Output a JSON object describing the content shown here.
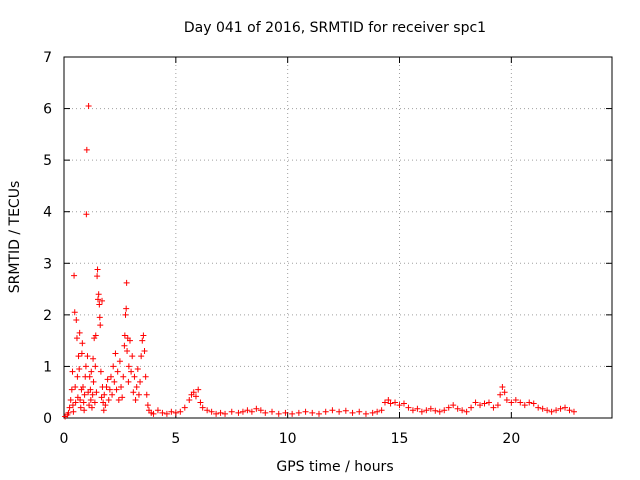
{
  "chart_data": {
    "type": "scatter",
    "title": "Day 041 of 2016, SRMTID for receiver spc1",
    "xlabel": "GPS time / hours",
    "ylabel": "SRMTID / TECUs",
    "xlim": [
      0,
      24.5
    ],
    "ylim": [
      0,
      7
    ],
    "xticks": [
      0,
      5,
      10,
      15,
      20
    ],
    "yticks": [
      0,
      1,
      2,
      3,
      4,
      5,
      6,
      7
    ],
    "grid": true,
    "marker": "+",
    "series": [
      {
        "name": "SRMTID",
        "color": "#ff0000",
        "points": [
          [
            0.05,
            0.03
          ],
          [
            0.15,
            0.06
          ],
          [
            0.2,
            0.1
          ],
          [
            0.25,
            0.2
          ],
          [
            0.3,
            0.35
          ],
          [
            0.35,
            0.55
          ],
          [
            0.38,
            0.9
          ],
          [
            0.4,
            0.25
          ],
          [
            0.42,
            0.12
          ],
          [
            0.45,
            2.76
          ],
          [
            0.48,
            2.05
          ],
          [
            0.5,
            0.6
          ],
          [
            0.52,
            0.3
          ],
          [
            0.55,
            1.9
          ],
          [
            0.58,
            1.55
          ],
          [
            0.6,
            0.8
          ],
          [
            0.62,
            0.4
          ],
          [
            0.65,
            1.2
          ],
          [
            0.68,
            0.95
          ],
          [
            0.7,
            1.65
          ],
          [
            0.72,
            0.35
          ],
          [
            0.75,
            0.2
          ],
          [
            0.78,
            0.55
          ],
          [
            0.8,
            1.25
          ],
          [
            0.82,
            1.45
          ],
          [
            0.85,
            0.6
          ],
          [
            0.88,
            0.3
          ],
          [
            0.9,
            0.15
          ],
          [
            0.92,
            0.45
          ],
          [
            0.95,
            0.8
          ],
          [
            0.98,
            1.0
          ],
          [
            1.0,
            3.95
          ],
          [
            1.02,
            5.2
          ],
          [
            1.05,
            1.2
          ],
          [
            1.08,
            0.5
          ],
          [
            1.1,
            6.05
          ],
          [
            1.12,
            0.25
          ],
          [
            1.15,
            0.8
          ],
          [
            1.18,
            0.55
          ],
          [
            1.2,
            0.35
          ],
          [
            1.22,
            0.9
          ],
          [
            1.25,
            0.2
          ],
          [
            1.28,
            0.45
          ],
          [
            1.3,
            1.15
          ],
          [
            1.32,
            0.7
          ],
          [
            1.35,
            1.55
          ],
          [
            1.38,
            0.3
          ],
          [
            1.4,
            1.0
          ],
          [
            1.42,
            1.6
          ],
          [
            1.45,
            0.5
          ],
          [
            1.48,
            2.75
          ],
          [
            1.5,
            2.88
          ],
          [
            1.52,
            2.3
          ],
          [
            1.55,
            2.4
          ],
          [
            1.58,
            2.2
          ],
          [
            1.6,
            1.95
          ],
          [
            1.62,
            1.8
          ],
          [
            1.65,
            0.9
          ],
          [
            1.68,
            0.4
          ],
          [
            1.7,
            2.27
          ],
          [
            1.72,
            0.6
          ],
          [
            1.75,
            0.3
          ],
          [
            1.78,
            0.15
          ],
          [
            1.8,
            0.45
          ],
          [
            1.85,
            0.25
          ],
          [
            1.9,
            0.6
          ],
          [
            1.95,
            0.75
          ],
          [
            2.0,
            0.35
          ],
          [
            2.05,
            0.55
          ],
          [
            2.1,
            0.8
          ],
          [
            2.15,
            0.45
          ],
          [
            2.2,
            1.0
          ],
          [
            2.25,
            0.7
          ],
          [
            2.3,
            1.25
          ],
          [
            2.35,
            0.55
          ],
          [
            2.4,
            0.9
          ],
          [
            2.45,
            0.35
          ],
          [
            2.5,
            1.1
          ],
          [
            2.55,
            0.6
          ],
          [
            2.6,
            0.4
          ],
          [
            2.65,
            0.8
          ],
          [
            2.7,
            1.4
          ],
          [
            2.72,
            1.6
          ],
          [
            2.75,
            2.0
          ],
          [
            2.78,
            2.12
          ],
          [
            2.8,
            2.62
          ],
          [
            2.82,
            1.3
          ],
          [
            2.85,
            1.55
          ],
          [
            2.88,
            0.7
          ],
          [
            2.9,
            1.0
          ],
          [
            2.95,
            1.5
          ],
          [
            3.0,
            0.9
          ],
          [
            3.05,
            1.2
          ],
          [
            3.1,
            0.5
          ],
          [
            3.15,
            0.8
          ],
          [
            3.2,
            0.35
          ],
          [
            3.25,
            0.6
          ],
          [
            3.3,
            0.95
          ],
          [
            3.35,
            0.45
          ],
          [
            3.4,
            0.7
          ],
          [
            3.45,
            1.2
          ],
          [
            3.5,
            1.5
          ],
          [
            3.55,
            1.6
          ],
          [
            3.6,
            1.3
          ],
          [
            3.65,
            0.8
          ],
          [
            3.7,
            0.45
          ],
          [
            3.75,
            0.25
          ],
          [
            3.8,
            0.15
          ],
          [
            3.9,
            0.1
          ],
          [
            4.0,
            0.08
          ],
          [
            4.2,
            0.15
          ],
          [
            4.4,
            0.1
          ],
          [
            4.6,
            0.08
          ],
          [
            4.8,
            0.12
          ],
          [
            5.0,
            0.1
          ],
          [
            5.2,
            0.12
          ],
          [
            5.4,
            0.2
          ],
          [
            5.6,
            0.35
          ],
          [
            5.7,
            0.45
          ],
          [
            5.8,
            0.5
          ],
          [
            5.9,
            0.42
          ],
          [
            6.0,
            0.55
          ],
          [
            6.1,
            0.3
          ],
          [
            6.2,
            0.2
          ],
          [
            6.4,
            0.15
          ],
          [
            6.6,
            0.12
          ],
          [
            6.8,
            0.08
          ],
          [
            7.0,
            0.1
          ],
          [
            7.2,
            0.08
          ],
          [
            7.5,
            0.12
          ],
          [
            7.8,
            0.1
          ],
          [
            8.0,
            0.12
          ],
          [
            8.2,
            0.15
          ],
          [
            8.4,
            0.12
          ],
          [
            8.6,
            0.18
          ],
          [
            8.8,
            0.15
          ],
          [
            9.0,
            0.1
          ],
          [
            9.3,
            0.12
          ],
          [
            9.6,
            0.08
          ],
          [
            9.9,
            0.1
          ],
          [
            10.2,
            0.08
          ],
          [
            10.5,
            0.1
          ],
          [
            10.8,
            0.12
          ],
          [
            11.1,
            0.1
          ],
          [
            11.4,
            0.08
          ],
          [
            11.7,
            0.12
          ],
          [
            12.0,
            0.15
          ],
          [
            12.3,
            0.12
          ],
          [
            12.6,
            0.14
          ],
          [
            12.9,
            0.1
          ],
          [
            13.2,
            0.12
          ],
          [
            13.5,
            0.08
          ],
          [
            13.8,
            0.1
          ],
          [
            14.0,
            0.12
          ],
          [
            14.2,
            0.15
          ],
          [
            14.35,
            0.3
          ],
          [
            14.5,
            0.35
          ],
          [
            14.6,
            0.28
          ],
          [
            14.8,
            0.3
          ],
          [
            15.0,
            0.25
          ],
          [
            15.2,
            0.28
          ],
          [
            15.4,
            0.2
          ],
          [
            15.6,
            0.15
          ],
          [
            15.8,
            0.18
          ],
          [
            16.0,
            0.12
          ],
          [
            16.2,
            0.15
          ],
          [
            16.4,
            0.18
          ],
          [
            16.6,
            0.14
          ],
          [
            16.8,
            0.12
          ],
          [
            17.0,
            0.15
          ],
          [
            17.2,
            0.2
          ],
          [
            17.4,
            0.25
          ],
          [
            17.6,
            0.18
          ],
          [
            17.8,
            0.15
          ],
          [
            18.0,
            0.12
          ],
          [
            18.2,
            0.2
          ],
          [
            18.4,
            0.3
          ],
          [
            18.6,
            0.25
          ],
          [
            18.8,
            0.28
          ],
          [
            19.0,
            0.3
          ],
          [
            19.2,
            0.2
          ],
          [
            19.4,
            0.25
          ],
          [
            19.5,
            0.45
          ],
          [
            19.6,
            0.6
          ],
          [
            19.7,
            0.5
          ],
          [
            19.8,
            0.35
          ],
          [
            20.0,
            0.3
          ],
          [
            20.2,
            0.35
          ],
          [
            20.4,
            0.3
          ],
          [
            20.6,
            0.25
          ],
          [
            20.8,
            0.3
          ],
          [
            21.0,
            0.28
          ],
          [
            21.2,
            0.2
          ],
          [
            21.4,
            0.18
          ],
          [
            21.6,
            0.15
          ],
          [
            21.8,
            0.12
          ],
          [
            22.0,
            0.15
          ],
          [
            22.2,
            0.18
          ],
          [
            22.4,
            0.2
          ],
          [
            22.6,
            0.15
          ],
          [
            22.8,
            0.12
          ]
        ]
      }
    ]
  }
}
